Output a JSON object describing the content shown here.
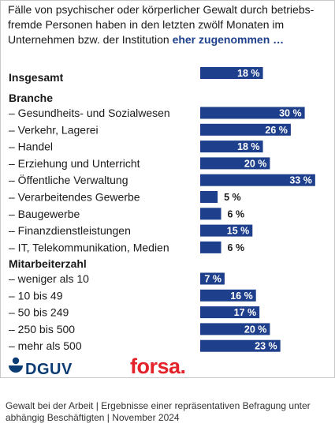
{
  "title": {
    "text": "Fälle von psychischer oder körperlicher Gewalt durch betriebs-fremde Personen haben in den letzten zwölf Monaten im Unternehmen bzw. der Institution",
    "highlight": "eher zugenommen …"
  },
  "chart_data": {
    "type": "bar",
    "orientation": "horizontal",
    "unit": "%",
    "bar_color": "#1e3f8c",
    "groups": [
      {
        "header": "Insgesamt",
        "items": [
          {
            "label": "",
            "value": 18
          }
        ]
      },
      {
        "header": "Branche",
        "items": [
          {
            "label": "– Gesundheits- und Sozialwesen",
            "value": 30
          },
          {
            "label": "– Verkehr, Lagerei",
            "value": 26
          },
          {
            "label": "– Handel",
            "value": 18
          },
          {
            "label": "– Erziehung und Unterricht",
            "value": 20
          },
          {
            "label": "– Öffentliche Verwaltung",
            "value": 33
          },
          {
            "label": "– Verarbeitendes Gewerbe",
            "value": 5
          },
          {
            "label": "– Baugewerbe",
            "value": 6
          },
          {
            "label": "– Finanzdienstleistungen",
            "value": 15
          },
          {
            "label": "– IT, Telekommunikation, Medien",
            "value": 6
          }
        ]
      },
      {
        "header": "Mitarbeiterzahl",
        "items": [
          {
            "label": "– weniger als 10",
            "value": 7
          },
          {
            "label": "– 10 bis 49",
            "value": 16
          },
          {
            "label": "– 50 bis 249",
            "value": 17
          },
          {
            "label": "– 250 bis 500",
            "value": 20
          },
          {
            "label": "– mehr als 500",
            "value": 23
          }
        ]
      }
    ]
  },
  "logos": {
    "dguv": "DGUV",
    "forsa": "forsa."
  },
  "footer": "Gewalt bei der Arbeit | Ergebnisse einer repräsentativen Befragung unter abhängig Beschäftigten | November 2024"
}
